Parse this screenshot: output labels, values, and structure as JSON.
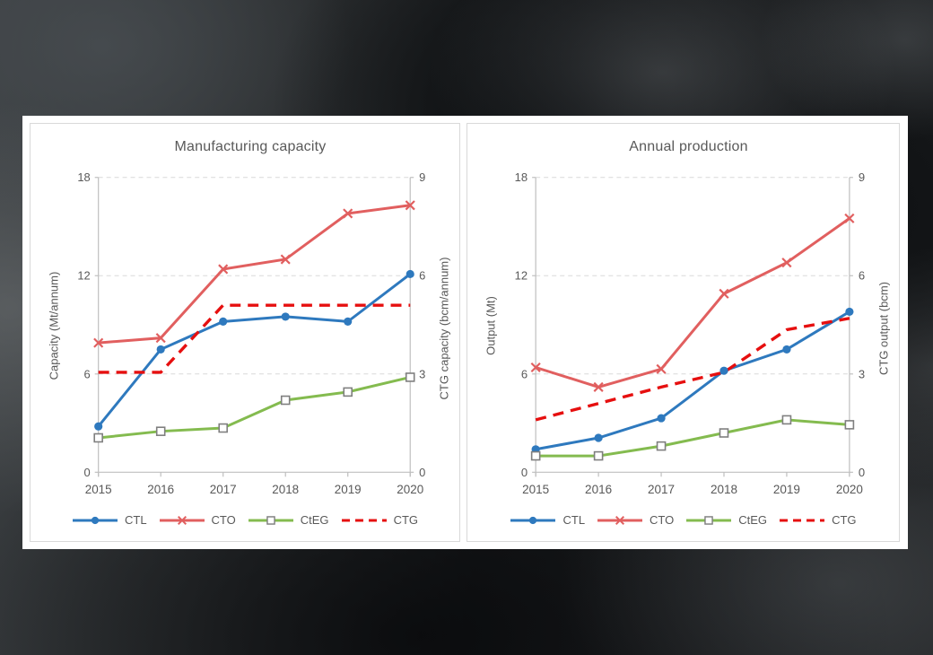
{
  "colors": {
    "panel": "#ffffff",
    "card_border": "#d9d9d9",
    "grid": "#d9d9d9",
    "axis": "#bfbfbf",
    "text": "#595959",
    "marker_square_stroke": "#7f7f7f",
    "ctl_blue": "#2e79be",
    "cto_red": "#e15f5f",
    "cteg_green": "#84bb4f",
    "ctg_red": "#e60f0f"
  },
  "chart_data": [
    {
      "type": "line",
      "title": "Manufacturing capacity",
      "categories": [
        "2015",
        "2016",
        "2017",
        "2018",
        "2019",
        "2020"
      ],
      "y_left": {
        "label": "Capacity (Mt/annum)",
        "ticks": [
          0,
          6,
          12,
          18
        ],
        "range": [
          0,
          18
        ]
      },
      "y_right": {
        "label": "CTG capacity (bcm/annum)",
        "ticks": [
          0,
          3,
          6,
          9
        ],
        "range": [
          0,
          9
        ]
      },
      "grid": "horizontal-dashed",
      "legend_position": "bottom",
      "series": [
        {
          "name": "CTL",
          "axis": "left",
          "color": "#2e79be",
          "marker": "circle",
          "line": "solid",
          "values": [
            2.8,
            7.5,
            9.2,
            9.5,
            9.2,
            12.1
          ]
        },
        {
          "name": "CTO",
          "axis": "left",
          "color": "#e15f5f",
          "marker": "x",
          "line": "solid",
          "values": [
            7.9,
            8.2,
            12.4,
            13.0,
            15.8,
            16.3
          ]
        },
        {
          "name": "CtEG",
          "axis": "left",
          "color": "#84bb4f",
          "marker": "square",
          "line": "solid",
          "values": [
            2.1,
            2.5,
            2.7,
            4.4,
            4.9,
            5.8
          ]
        },
        {
          "name": "CTG",
          "axis": "right",
          "color": "#e60f0f",
          "marker": "none",
          "line": "dashed",
          "values": [
            3.05,
            3.05,
            5.1,
            5.1,
            5.1,
            5.1
          ]
        }
      ]
    },
    {
      "type": "line",
      "title": "Annual production",
      "categories": [
        "2015",
        "2016",
        "2017",
        "2018",
        "2019",
        "2020"
      ],
      "y_left": {
        "label": "Output (Mt)",
        "ticks": [
          0,
          6,
          12,
          18
        ],
        "range": [
          0,
          18
        ]
      },
      "y_right": {
        "label": "CTG output (bcm)",
        "ticks": [
          0,
          3,
          6,
          9
        ],
        "range": [
          0,
          9
        ]
      },
      "grid": "horizontal-dashed",
      "legend_position": "bottom",
      "series": [
        {
          "name": "CTL",
          "axis": "left",
          "color": "#2e79be",
          "marker": "circle",
          "line": "solid",
          "values": [
            1.4,
            2.1,
            3.3,
            6.2,
            7.5,
            9.8
          ]
        },
        {
          "name": "CTO",
          "axis": "left",
          "color": "#e15f5f",
          "marker": "x",
          "line": "solid",
          "values": [
            6.4,
            5.2,
            6.3,
            10.9,
            12.8,
            15.5
          ]
        },
        {
          "name": "CtEG",
          "axis": "left",
          "color": "#84bb4f",
          "marker": "square",
          "line": "solid",
          "values": [
            1.0,
            1.0,
            1.6,
            2.4,
            3.2,
            2.9
          ]
        },
        {
          "name": "CTG",
          "axis": "right",
          "color": "#e60f0f",
          "marker": "none",
          "line": "dashed",
          "values": [
            1.6,
            2.1,
            2.6,
            3.05,
            4.35,
            4.7
          ]
        }
      ]
    }
  ]
}
